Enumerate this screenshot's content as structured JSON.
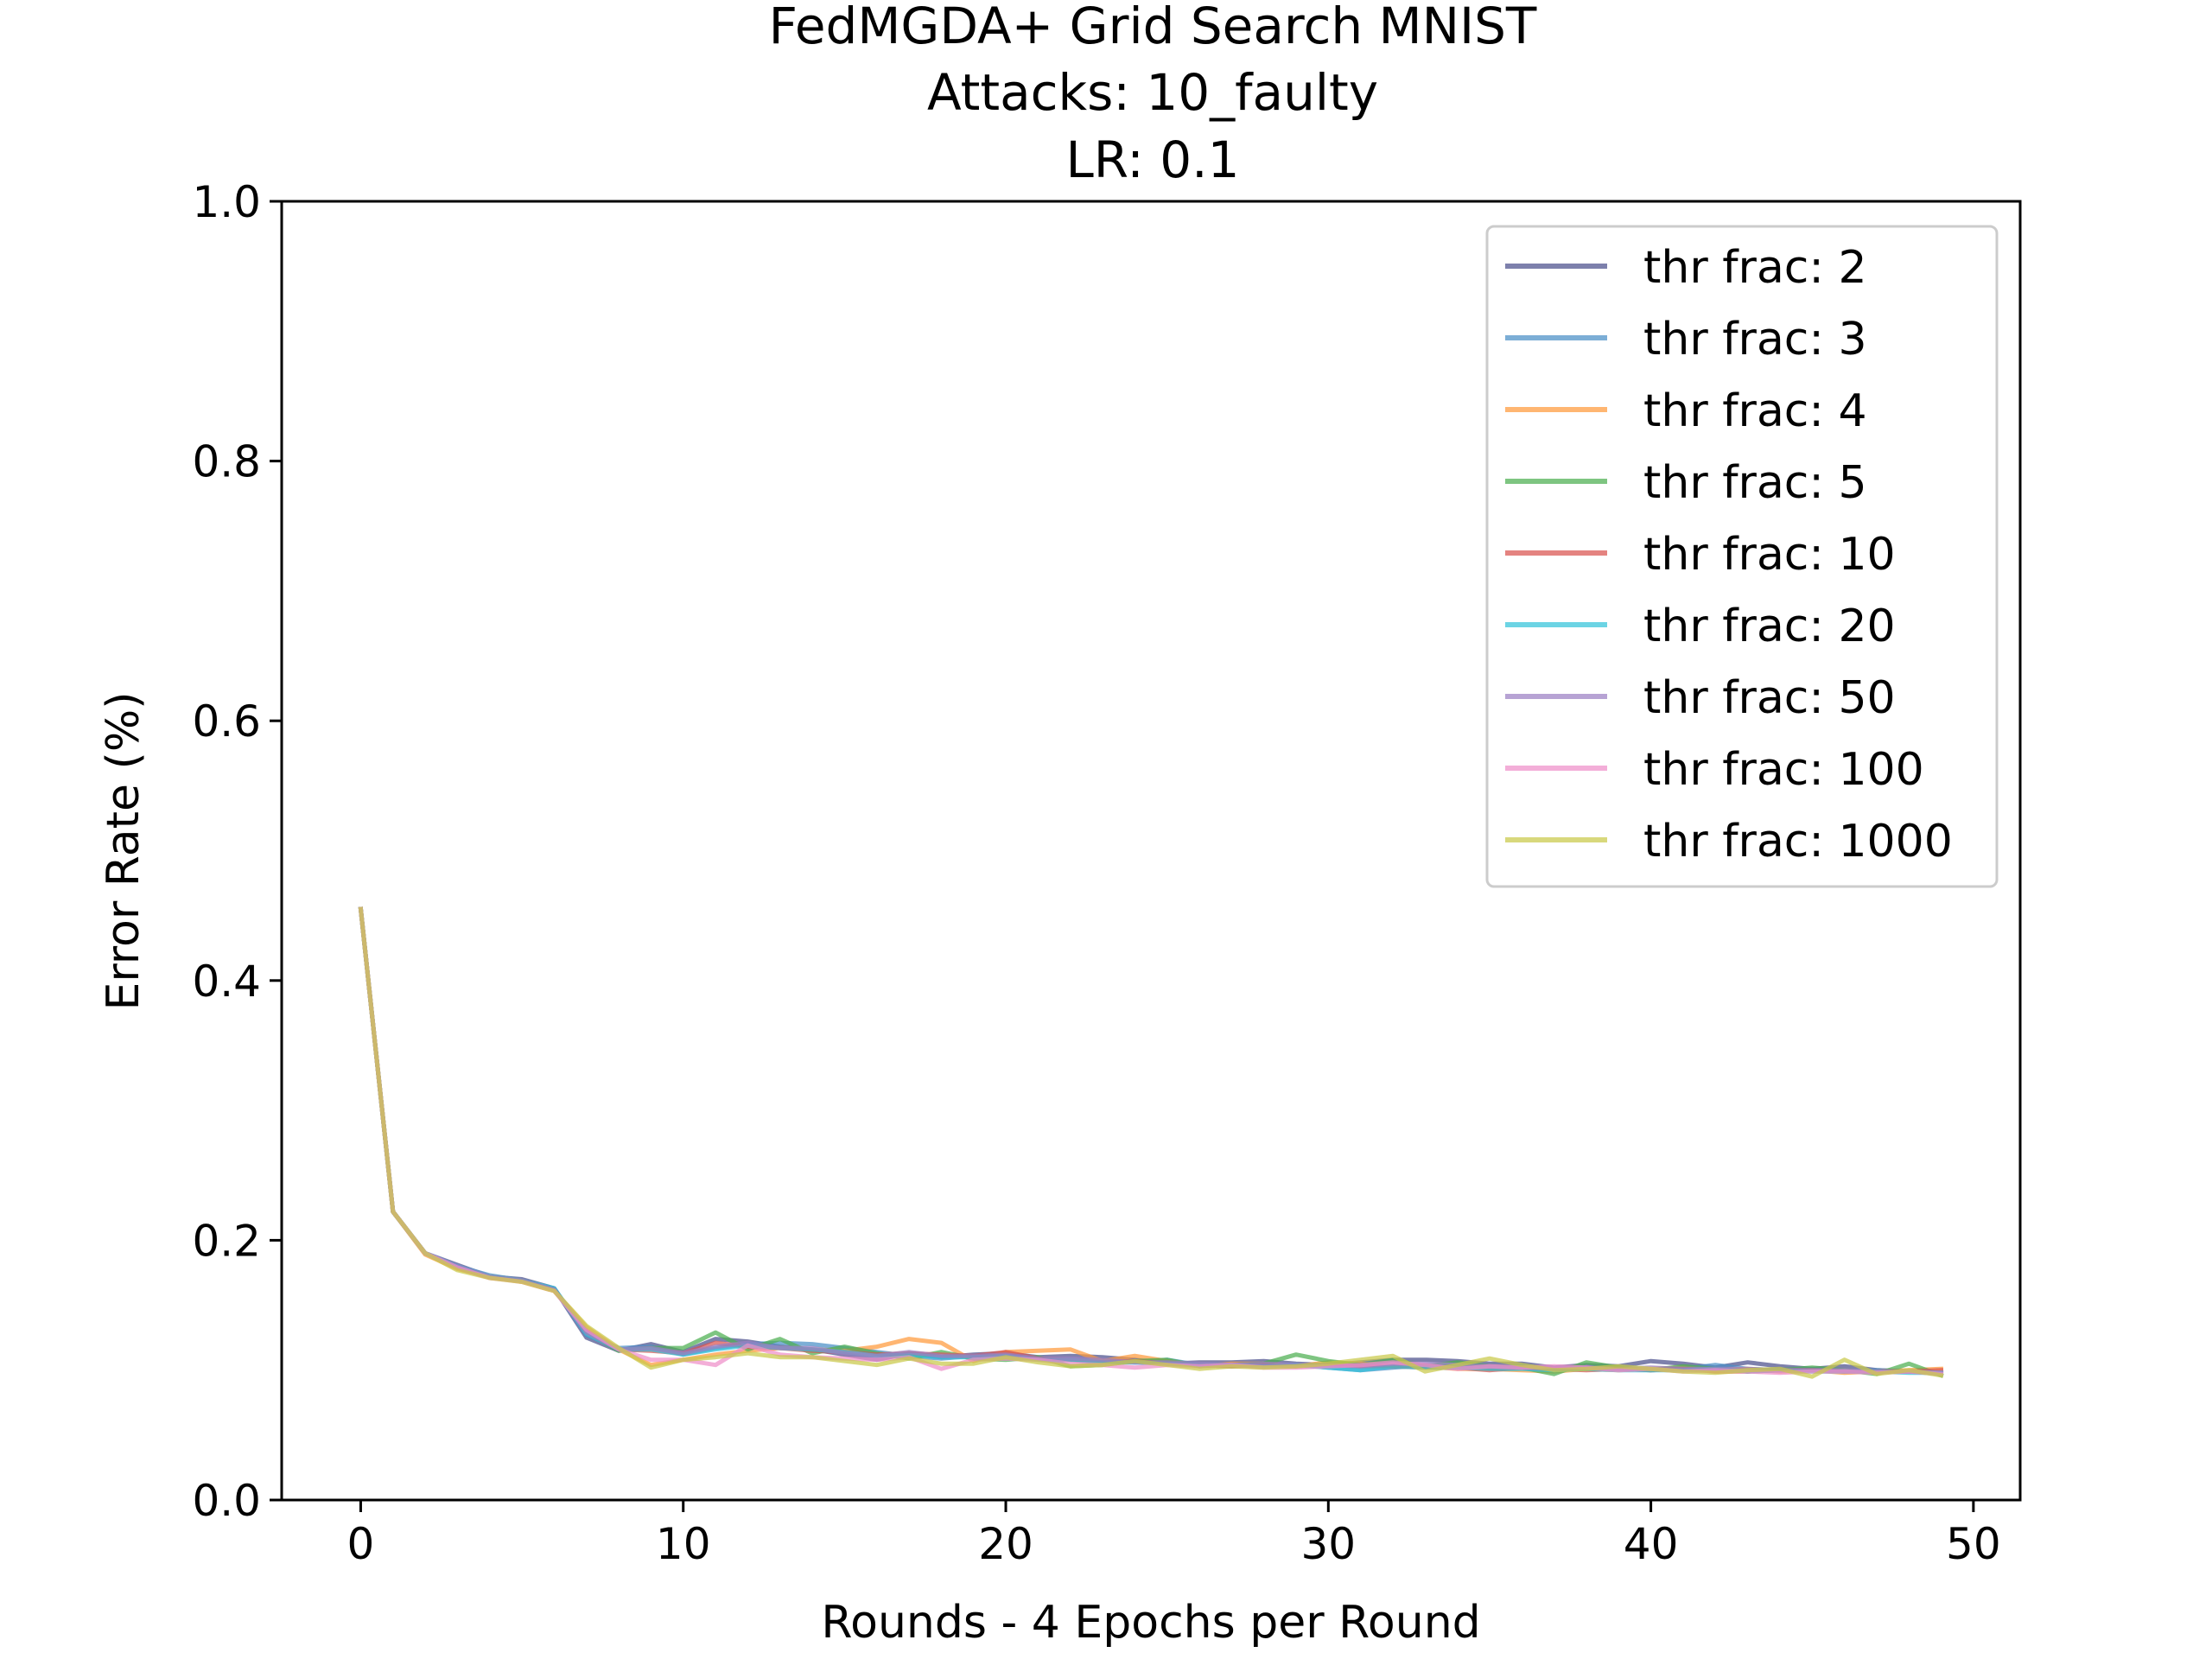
{
  "chart_data": {
    "type": "line",
    "title_lines": [
      "FedMGDA+ Grid Search MNIST",
      "Attacks: 10_faulty",
      "LR: 0.1"
    ],
    "xlabel": "Rounds - 4 Epochs per Round",
    "ylabel": "Error Rate (%)",
    "xlim": [
      -2.45,
      51.45
    ],
    "ylim": [
      0.0,
      1.0
    ],
    "xticks": [
      0,
      10,
      20,
      30,
      40,
      50
    ],
    "xtick_labels": [
      "0",
      "10",
      "20",
      "30",
      "40",
      "50"
    ],
    "yticks": [
      0.0,
      0.2,
      0.4,
      0.6,
      0.8,
      1.0
    ],
    "ytick_labels": [
      "0.0",
      "0.2",
      "0.4",
      "0.6",
      "0.8",
      "1.0"
    ],
    "grid": false,
    "legend_position": "top-right",
    "x": [
      0,
      1,
      2,
      3,
      4,
      5,
      6,
      7,
      8,
      9,
      10,
      11,
      12,
      13,
      14,
      15,
      16,
      17,
      18,
      19,
      20,
      21,
      22,
      23,
      24,
      25,
      26,
      27,
      28,
      29,
      30,
      31,
      32,
      33,
      34,
      35,
      36,
      37,
      38,
      39,
      40,
      41,
      42,
      43,
      44,
      45,
      46,
      47,
      48,
      49
    ],
    "series": [
      {
        "name": "thr frac: 2",
        "color": "#4b4f8c",
        "values": [
          0.455,
          0.222,
          0.19,
          0.181,
          0.172,
          0.17,
          0.163,
          0.125,
          0.115,
          0.12,
          0.114,
          0.124,
          0.122,
          0.118,
          0.116,
          0.112,
          0.108,
          0.113,
          0.11,
          0.112,
          0.113,
          0.11,
          0.111,
          0.11,
          0.108,
          0.105,
          0.106,
          0.106,
          0.107,
          0.105,
          0.104,
          0.106,
          0.108,
          0.108,
          0.107,
          0.105,
          0.105,
          0.102,
          0.104,
          0.103,
          0.107,
          0.105,
          0.102,
          0.106,
          0.103,
          0.101,
          0.103,
          0.1,
          0.099,
          0.098
        ]
      },
      {
        "name": "thr frac: 3",
        "color": "#4a8fc6",
        "values": [
          0.455,
          0.222,
          0.19,
          0.18,
          0.173,
          0.169,
          0.163,
          0.127,
          0.117,
          0.118,
          0.112,
          0.117,
          0.12,
          0.121,
          0.12,
          0.117,
          0.114,
          0.111,
          0.109,
          0.111,
          0.112,
          0.109,
          0.108,
          0.107,
          0.106,
          0.108,
          0.104,
          0.103,
          0.104,
          0.104,
          0.102,
          0.1,
          0.102,
          0.104,
          0.103,
          0.102,
          0.103,
          0.101,
          0.102,
          0.101,
          0.1,
          0.101,
          0.104,
          0.101,
          0.1,
          0.101,
          0.099,
          0.1,
          0.099,
          0.097
        ]
      },
      {
        "name": "thr frac: 4",
        "color": "#ff9a3c",
        "values": [
          0.455,
          0.222,
          0.189,
          0.178,
          0.172,
          0.168,
          0.161,
          0.133,
          0.116,
          0.104,
          0.108,
          0.112,
          0.115,
          0.117,
          0.116,
          0.115,
          0.118,
          0.124,
          0.121,
          0.107,
          0.114,
          0.115,
          0.116,
          0.107,
          0.111,
          0.107,
          0.103,
          0.105,
          0.105,
          0.103,
          0.106,
          0.105,
          0.104,
          0.103,
          0.101,
          0.101,
          0.1,
          0.099,
          0.101,
          0.1,
          0.101,
          0.102,
          0.1,
          0.101,
          0.099,
          0.1,
          0.098,
          0.099,
          0.1,
          0.101
        ]
      },
      {
        "name": "thr frac: 5",
        "color": "#4caf50",
        "values": [
          0.455,
          0.222,
          0.19,
          0.179,
          0.172,
          0.169,
          0.162,
          0.129,
          0.115,
          0.117,
          0.117,
          0.129,
          0.116,
          0.124,
          0.113,
          0.118,
          0.113,
          0.109,
          0.114,
          0.109,
          0.108,
          0.11,
          0.103,
          0.104,
          0.107,
          0.108,
          0.103,
          0.104,
          0.105,
          0.112,
          0.107,
          0.104,
          0.108,
          0.103,
          0.106,
          0.103,
          0.102,
          0.097,
          0.106,
          0.102,
          0.1,
          0.103,
          0.101,
          0.099,
          0.1,
          0.102,
          0.1,
          0.097,
          0.105,
          0.096
        ]
      },
      {
        "name": "thr frac: 10",
        "color": "#d9534f",
        "values": [
          0.455,
          0.222,
          0.19,
          0.179,
          0.171,
          0.169,
          0.162,
          0.13,
          0.116,
          0.115,
          0.113,
          0.121,
          0.118,
          0.117,
          0.115,
          0.114,
          0.112,
          0.113,
          0.112,
          0.111,
          0.114,
          0.109,
          0.108,
          0.106,
          0.107,
          0.105,
          0.104,
          0.103,
          0.104,
          0.103,
          0.104,
          0.103,
          0.103,
          0.102,
          0.102,
          0.1,
          0.102,
          0.101,
          0.1,
          0.101,
          0.1,
          0.101,
          0.099,
          0.099,
          0.1,
          0.1,
          0.099,
          0.099,
          0.099,
          0.1
        ]
      },
      {
        "name": "thr frac: 20",
        "color": "#33c3d9",
        "values": [
          0.455,
          0.222,
          0.19,
          0.18,
          0.172,
          0.169,
          0.163,
          0.128,
          0.116,
          0.116,
          0.112,
          0.116,
          0.119,
          0.117,
          0.116,
          0.114,
          0.111,
          0.112,
          0.11,
          0.11,
          0.111,
          0.108,
          0.108,
          0.106,
          0.106,
          0.105,
          0.104,
          0.104,
          0.103,
          0.104,
          0.102,
          0.1,
          0.103,
          0.102,
          0.102,
          0.101,
          0.101,
          0.1,
          0.101,
          0.1,
          0.1,
          0.1,
          0.101,
          0.099,
          0.1,
          0.099,
          0.099,
          0.099,
          0.098,
          0.098
        ]
      },
      {
        "name": "thr frac: 50",
        "color": "#9b7fc4",
        "values": [
          0.455,
          0.222,
          0.19,
          0.18,
          0.172,
          0.169,
          0.162,
          0.129,
          0.116,
          0.117,
          0.113,
          0.118,
          0.121,
          0.117,
          0.117,
          0.113,
          0.111,
          0.114,
          0.111,
          0.111,
          0.112,
          0.109,
          0.109,
          0.108,
          0.106,
          0.106,
          0.105,
          0.104,
          0.105,
          0.104,
          0.104,
          0.103,
          0.105,
          0.105,
          0.104,
          0.103,
          0.102,
          0.101,
          0.102,
          0.101,
          0.102,
          0.101,
          0.101,
          0.101,
          0.1,
          0.1,
          0.1,
          0.099,
          0.099,
          0.098
        ]
      },
      {
        "name": "thr frac: 100",
        "color": "#ee8fc9",
        "values": [
          0.455,
          0.222,
          0.19,
          0.179,
          0.171,
          0.168,
          0.161,
          0.131,
          0.116,
          0.108,
          0.108,
          0.104,
          0.119,
          0.112,
          0.11,
          0.109,
          0.108,
          0.11,
          0.101,
          0.108,
          0.109,
          0.108,
          0.105,
          0.104,
          0.102,
          0.104,
          0.103,
          0.104,
          0.102,
          0.102,
          0.103,
          0.104,
          0.106,
          0.104,
          0.101,
          0.103,
          0.102,
          0.103,
          0.102,
          0.1,
          0.101,
          0.099,
          0.1,
          0.099,
          0.098,
          0.099,
          0.099,
          0.098,
          0.099,
          0.097
        ]
      },
      {
        "name": "thr frac: 1000",
        "color": "#c9c94a",
        "values": [
          0.455,
          0.222,
          0.19,
          0.177,
          0.171,
          0.168,
          0.161,
          0.134,
          0.117,
          0.102,
          0.108,
          0.11,
          0.113,
          0.11,
          0.11,
          0.107,
          0.104,
          0.109,
          0.105,
          0.105,
          0.11,
          0.106,
          0.103,
          0.104,
          0.107,
          0.104,
          0.101,
          0.103,
          0.102,
          0.103,
          0.105,
          0.108,
          0.111,
          0.099,
          0.104,
          0.109,
          0.104,
          0.1,
          0.101,
          0.103,
          0.101,
          0.099,
          0.098,
          0.1,
          0.101,
          0.095,
          0.108,
          0.097,
          0.1,
          0.096
        ]
      }
    ]
  }
}
